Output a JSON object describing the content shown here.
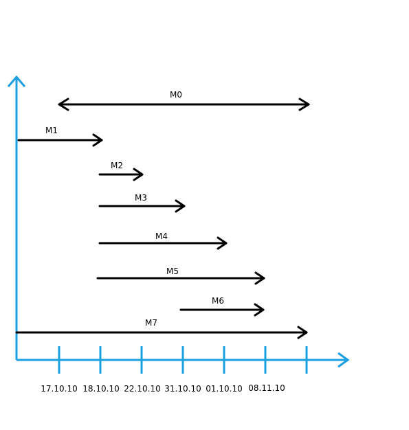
{
  "axis_color": "#1aa0e0",
  "arrow_color": "#000000",
  "ticks": [
    "17.10.10",
    "18.10.10",
    "22.10.10",
    "31.10.10",
    "01.10.10",
    "08.11.10",
    ""
  ],
  "arrows": [
    {
      "label": "M0",
      "bidirectional": true
    },
    {
      "label": "M1",
      "bidirectional": false
    },
    {
      "label": "M2",
      "bidirectional": false
    },
    {
      "label": "M3",
      "bidirectional": false
    },
    {
      "label": "M4",
      "bidirectional": false
    },
    {
      "label": "M5",
      "bidirectional": false
    },
    {
      "label": "M6",
      "bidirectional": false
    },
    {
      "label": "M7",
      "bidirectional": false
    }
  ]
}
